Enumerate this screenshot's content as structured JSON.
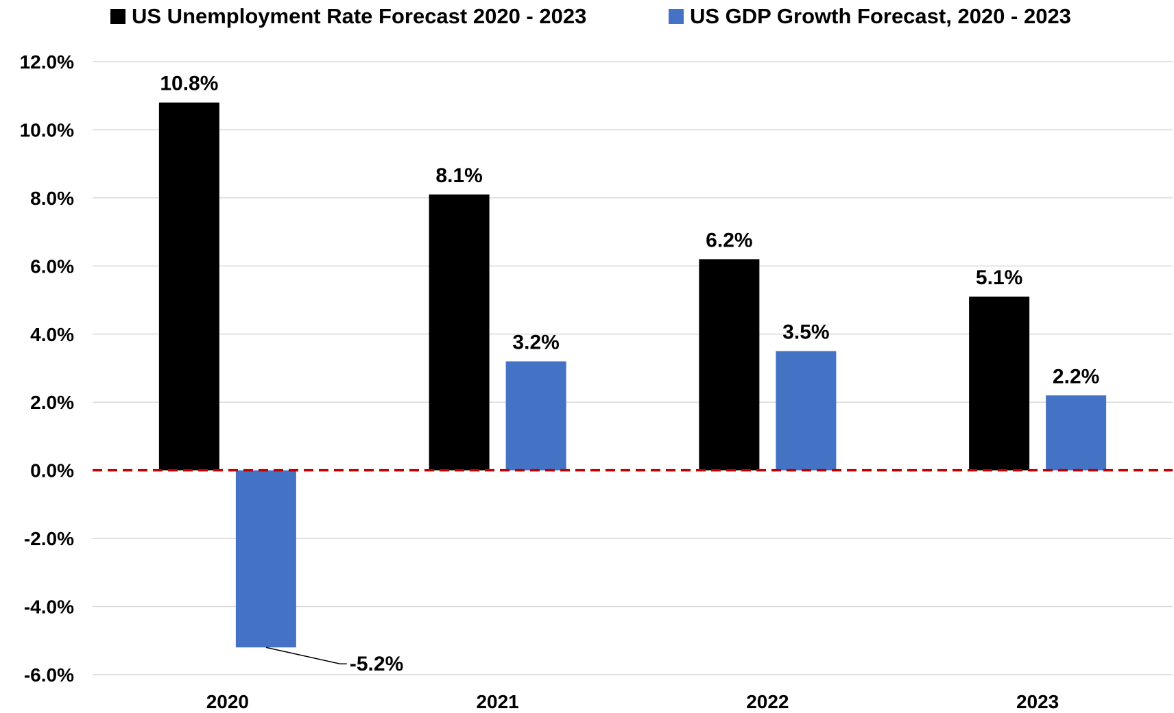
{
  "chart_data": {
    "type": "bar",
    "title": "",
    "xlabel": "",
    "ylabel": "",
    "categories": [
      "2020",
      "2021",
      "2022",
      "2023"
    ],
    "series": [
      {
        "name": "US Unemployment Rate Forecast 2020 - 2023",
        "color": "#000000",
        "values": [
          10.8,
          8.1,
          6.2,
          5.1
        ],
        "labels": [
          "10.8%",
          "8.1%",
          "6.2%",
          "5.1%"
        ]
      },
      {
        "name": "US GDP Growth Forecast, 2020 - 2023",
        "color": "#4472c4",
        "values": [
          -5.2,
          3.2,
          3.5,
          2.2
        ],
        "labels": [
          "-5.2%",
          "3.2%",
          "3.5%",
          "2.2%"
        ]
      }
    ],
    "ylim": [
      -6.0,
      12.0
    ],
    "yticks": [
      12.0,
      10.0,
      8.0,
      6.0,
      4.0,
      2.0,
      0.0,
      -2.0,
      -4.0,
      -6.0
    ],
    "ytick_labels": [
      "12.0%",
      "10.0%",
      "8.0%",
      "6.0%",
      "4.0%",
      "2.0%",
      "0.0%",
      "-2.0%",
      "-4.0%",
      "-6.0%"
    ],
    "grid": true,
    "legend_position": "top",
    "reference_line": {
      "value": 0.0,
      "style": "dashed",
      "color": "#c00000"
    }
  }
}
